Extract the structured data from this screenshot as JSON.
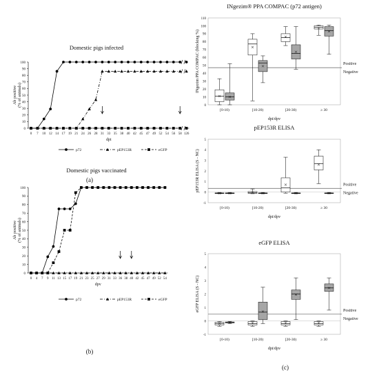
{
  "figure": {
    "panel_a": "(a)",
    "panel_b": "(b)",
    "panel_c": "(c)"
  },
  "chart_data": [
    {
      "type": "line",
      "title": "Domestic pigs infected",
      "ylabel": "Ab positive",
      "ylabel2": "(% of animals)",
      "xlabel": "dpi",
      "ylim": [
        0,
        100
      ],
      "yticks": [
        "0",
        "10",
        "20",
        "30",
        "40",
        "50",
        "60",
        "70",
        "80",
        "90",
        "100"
      ],
      "x": [
        "0",
        "7",
        "10",
        "12",
        "14",
        "17",
        "19",
        "21",
        "24",
        "26",
        "28",
        "31",
        "33",
        "35",
        "38",
        "40",
        "42",
        "45",
        "47",
        "49",
        "52",
        "54",
        "56",
        "58",
        "126"
      ],
      "series": [
        {
          "name": "p72",
          "marker": "circle",
          "dash": "",
          "values": [
            0,
            0,
            14,
            29,
            86,
            100,
            100,
            100,
            100,
            100,
            100,
            100,
            100,
            100,
            100,
            100,
            100,
            100,
            100,
            100,
            100,
            100,
            100,
            100,
            100
          ]
        },
        {
          "name": "pEP153R",
          "marker": "triangle",
          "dash": "4 2 1 2",
          "values": [
            0,
            0,
            0,
            0,
            0,
            0,
            0,
            0,
            14,
            29,
            43,
            86,
            86,
            86,
            86,
            86,
            86,
            86,
            86,
            86,
            86,
            86,
            86,
            86,
            86
          ]
        },
        {
          "name": "eGFP",
          "marker": "square",
          "dash": "3 2",
          "values": [
            0,
            0,
            0,
            0,
            0,
            0,
            0,
            0,
            0,
            0,
            0,
            0,
            0,
            0,
            0,
            0,
            0,
            0,
            0,
            0,
            0,
            0,
            0,
            0,
            0
          ]
        }
      ],
      "arrows_at": [
        "31",
        "58"
      ],
      "axis_break_after": "58"
    },
    {
      "type": "line",
      "title": "Domestic pigs vaccinated",
      "ylabel": "Ab positive",
      "ylabel2": "(% of animals)",
      "xlabel": "dpv",
      "ylim": [
        0,
        100
      ],
      "yticks": [
        "0",
        "10",
        "20",
        "30",
        "40",
        "50",
        "60",
        "70",
        "80",
        "90",
        "100"
      ],
      "x": [
        "0",
        "4",
        "7",
        "9",
        "11",
        "13",
        "15",
        "17",
        "19",
        "21",
        "23",
        "25",
        "27",
        "29",
        "31",
        "33",
        "36",
        "38",
        "40",
        "42",
        "45",
        "47",
        "49",
        "52",
        "54"
      ],
      "series": [
        {
          "name": "p72",
          "marker": "circle",
          "dash": "",
          "values": [
            0,
            0,
            0,
            19,
            31,
            75,
            75,
            75,
            81,
            100,
            100,
            100,
            100,
            100,
            100,
            100,
            100,
            100,
            100,
            100,
            100,
            100,
            100,
            100,
            100
          ]
        },
        {
          "name": "pEP153R",
          "marker": "triangle",
          "dash": "4 2 1 2",
          "values": [
            0,
            0,
            0,
            0,
            0,
            0,
            0,
            0,
            0,
            0,
            0,
            0,
            0,
            0,
            0,
            0,
            0,
            0,
            0,
            0,
            0,
            0,
            0,
            0,
            0
          ]
        },
        {
          "name": "eGFP",
          "marker": "square",
          "dash": "3 2",
          "values": [
            0,
            0,
            0,
            0,
            12,
            25,
            50,
            50,
            94,
            100,
            100,
            100,
            100,
            100,
            100,
            100,
            100,
            100,
            100,
            100,
            100,
            100,
            100,
            100,
            100
          ]
        }
      ],
      "arrows_at": [
        "36",
        "40"
      ]
    },
    {
      "type": "box",
      "title": "INgezim® PPA COMPAC (p72 antigen)",
      "ylabel": "INgezim PPA COMPAC (blocking %)",
      "xlabel": "dpi/dpv",
      "ylim": [
        0,
        110
      ],
      "yticks": [
        "0",
        "10",
        "20",
        "30",
        "40",
        "50",
        "60",
        "70",
        "80",
        "90",
        "100",
        "110"
      ],
      "categories": [
        "[0-10)",
        "[10-20)",
        "[20-30)",
        "≥ 30"
      ],
      "cutoff": 47,
      "cutoff_labels": [
        "Positive",
        "Negative"
      ],
      "boxes": [
        {
          "cat": 0,
          "group": "infected",
          "min": 0,
          "q1": 4,
          "median": 11,
          "q3": 19,
          "max": 33,
          "mean": 11
        },
        {
          "cat": 0,
          "group": "vaccinated",
          "min": 0,
          "q1": 6,
          "median": 10,
          "q3": 15,
          "max": 52,
          "mean": 10
        },
        {
          "cat": 1,
          "group": "infected",
          "min": 5,
          "q1": 63,
          "median": 77,
          "q3": 83,
          "max": 90,
          "mean": 73
        },
        {
          "cat": 1,
          "group": "vaccinated",
          "min": 28,
          "q1": 42,
          "median": 53,
          "q3": 56,
          "max": 62,
          "mean": 49
        },
        {
          "cat": 2,
          "group": "infected",
          "min": 75,
          "q1": 80,
          "median": 85,
          "q3": 90,
          "max": 99,
          "mean": 86
        },
        {
          "cat": 2,
          "group": "vaccinated",
          "min": 45,
          "q1": 58,
          "median": 65,
          "q3": 76,
          "max": 99,
          "mean": 67
        },
        {
          "cat": 3,
          "group": "infected",
          "min": 88,
          "q1": 96,
          "median": 98,
          "q3": 100,
          "max": 101,
          "mean": 97
        },
        {
          "cat": 3,
          "group": "vaccinated",
          "min": 64,
          "q1": 87,
          "median": 94,
          "q3": 99,
          "max": 101,
          "mean": 93
        }
      ]
    },
    {
      "type": "box",
      "title": "pEP153R ELISA",
      "ylabel": "pEP153R ELISA (S - NC)",
      "xlabel": "dpi/dpv",
      "ylim": [
        -1,
        5
      ],
      "yticks": [
        "-1",
        "0",
        "1",
        "2",
        "3",
        "4",
        "5"
      ],
      "categories": [
        "[0-10)",
        "[10-20)",
        "[20-30)",
        "≥ 30"
      ],
      "cutoff": 0.35,
      "cutoff_labels": [
        "Positive",
        "Negative"
      ],
      "boxes": [
        {
          "cat": 0,
          "group": "infected",
          "min": -0.15,
          "q1": -0.12,
          "median": -0.1,
          "q3": -0.08,
          "max": -0.05,
          "mean": -0.1
        },
        {
          "cat": 0,
          "group": "vaccinated",
          "min": -0.15,
          "q1": -0.12,
          "median": -0.1,
          "q3": -0.08,
          "max": -0.05,
          "mean": -0.1
        },
        {
          "cat": 1,
          "group": "infected",
          "min": -0.15,
          "q1": -0.12,
          "median": -0.05,
          "q3": 0.05,
          "max": 0.3,
          "mean": -0.02
        },
        {
          "cat": 1,
          "group": "vaccinated",
          "min": -0.15,
          "q1": -0.12,
          "median": -0.1,
          "q3": -0.08,
          "max": -0.05,
          "mean": -0.1
        },
        {
          "cat": 2,
          "group": "infected",
          "min": -0.1,
          "q1": 0.0,
          "median": 0.4,
          "q3": 1.35,
          "max": 3.3,
          "mean": 0.7
        },
        {
          "cat": 2,
          "group": "vaccinated",
          "min": -0.15,
          "q1": -0.12,
          "median": -0.1,
          "q3": -0.08,
          "max": -0.05,
          "mean": -0.1
        },
        {
          "cat": 3,
          "group": "infected",
          "min": 0.8,
          "q1": 2.1,
          "median": 2.7,
          "q3": 3.4,
          "max": 4.0,
          "mean": 2.6
        },
        {
          "cat": 3,
          "group": "vaccinated",
          "min": -0.15,
          "q1": -0.12,
          "median": -0.1,
          "q3": -0.08,
          "max": -0.05,
          "mean": -0.1
        }
      ]
    },
    {
      "type": "box",
      "title": "eGFP ELISA",
      "ylabel": "eGFP ELISA (S - NC)",
      "xlabel": "dpi/dpv",
      "ylim": [
        -1,
        5
      ],
      "yticks": [
        "-1",
        "0",
        "1",
        "2",
        "3",
        "4",
        "5"
      ],
      "categories": [
        "[0-10)",
        "[10-20)",
        "[20-30)",
        "≥ 30"
      ],
      "cutoff": 0.5,
      "cutoff_labels": [
        "Positive",
        "Negative"
      ],
      "boxes": [
        {
          "cat": 0,
          "group": "infected",
          "min": -0.4,
          "q1": -0.3,
          "median": -0.2,
          "q3": -0.1,
          "max": -0.05,
          "mean": -0.2
        },
        {
          "cat": 0,
          "group": "vaccinated",
          "min": -0.2,
          "q1": -0.15,
          "median": -0.1,
          "q3": -0.08,
          "max": -0.05,
          "mean": -0.1
        },
        {
          "cat": 1,
          "group": "infected",
          "min": -0.4,
          "q1": -0.3,
          "median": -0.2,
          "q3": -0.05,
          "max": 0.0,
          "mean": -0.15
        },
        {
          "cat": 1,
          "group": "vaccinated",
          "min": -0.2,
          "q1": 0.1,
          "median": 0.65,
          "q3": 1.4,
          "max": 2.5,
          "mean": 0.7
        },
        {
          "cat": 2,
          "group": "infected",
          "min": -0.4,
          "q1": -0.3,
          "median": -0.2,
          "q3": -0.05,
          "max": 0.0,
          "mean": -0.15
        },
        {
          "cat": 2,
          "group": "vaccinated",
          "min": 0.1,
          "q1": 1.6,
          "median": 2.0,
          "q3": 2.3,
          "max": 3.2,
          "mean": 1.95
        },
        {
          "cat": 3,
          "group": "infected",
          "min": -0.4,
          "q1": -0.3,
          "median": -0.2,
          "q3": -0.05,
          "max": 0.0,
          "mean": -0.15
        },
        {
          "cat": 3,
          "group": "vaccinated",
          "min": 0.8,
          "q1": 2.2,
          "median": 2.45,
          "q3": 2.75,
          "max": 3.2,
          "mean": 2.45
        }
      ]
    }
  ]
}
